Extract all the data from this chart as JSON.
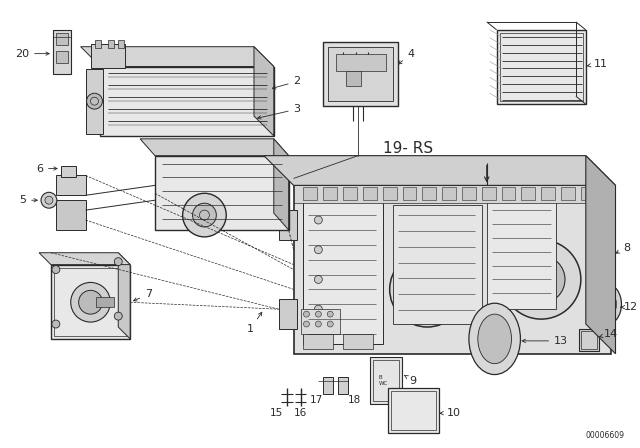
{
  "bg_color": "#ffffff",
  "line_color": "#2a2a2a",
  "fig_width": 6.4,
  "fig_height": 4.48,
  "dpi": 100,
  "watermark": "00006609",
  "label_19rs": "19- RS",
  "title_fontsize": 9,
  "label_fontsize": 7.5,
  "lw_main": 0.9,
  "lw_thin": 0.5,
  "lw_med": 0.7,
  "gray_light": "#e0e0e0",
  "gray_mid": "#c0c0c0",
  "gray_dark": "#888888"
}
